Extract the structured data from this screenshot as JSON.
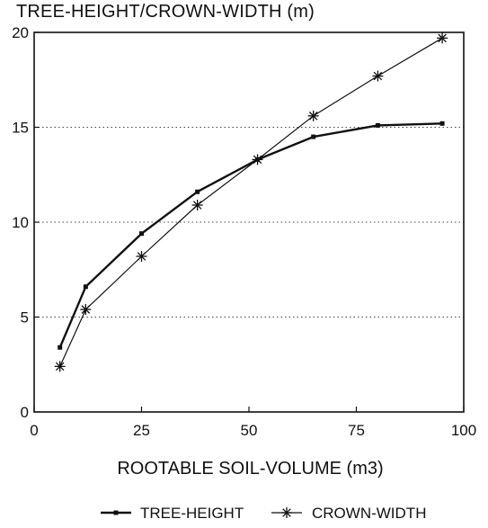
{
  "chart_data": {
    "type": "line",
    "title": "TREE-HEIGHT/CROWN-WIDTH (m)",
    "xlabel": "ROOTABLE SOIL-VOLUME (m3)",
    "ylabel": "",
    "xlim": [
      0,
      100
    ],
    "ylim": [
      0,
      20
    ],
    "xticks": [
      "0",
      "25",
      "50",
      "75",
      "100"
    ],
    "yticks": [
      "0",
      "5",
      "10",
      "15",
      "20"
    ],
    "grid": "horizontal-dotted",
    "legend_position": "bottom",
    "series": [
      {
        "name": "TREE-HEIGHT",
        "marker": "dot",
        "x": [
          6,
          12,
          25,
          38,
          52,
          65,
          80,
          95
        ],
        "y": [
          3.4,
          6.6,
          9.4,
          11.6,
          13.3,
          14.5,
          15.1,
          15.2
        ]
      },
      {
        "name": "CROWN-WIDTH",
        "marker": "star",
        "x": [
          6,
          12,
          25,
          38,
          52,
          65,
          80,
          95
        ],
        "y": [
          2.4,
          5.4,
          8.2,
          10.9,
          13.3,
          15.6,
          17.7,
          19.7
        ]
      }
    ]
  },
  "colors": {
    "ink": "#111111",
    "grid": "#444444",
    "background": "#ffffff"
  }
}
